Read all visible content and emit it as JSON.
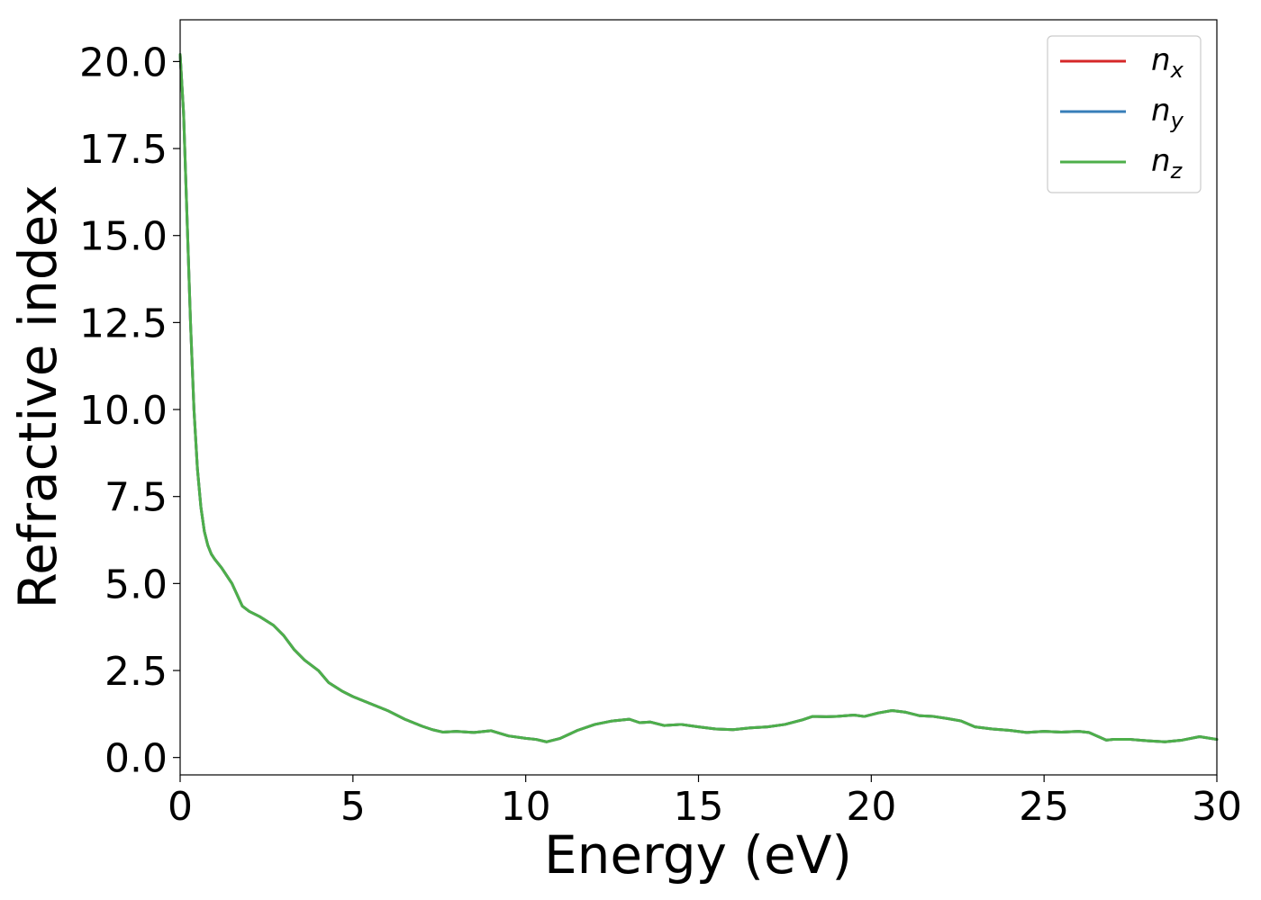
{
  "chart_data": {
    "type": "line",
    "title": "",
    "xlabel": "Energy (eV)",
    "ylabel": "Refractive index",
    "xlim": [
      0,
      30
    ],
    "ylim": [
      -0.5,
      21.2
    ],
    "xticks": [
      0,
      5,
      10,
      15,
      20,
      25,
      30
    ],
    "xtick_labels": [
      "0",
      "5",
      "10",
      "15",
      "20",
      "25",
      "30"
    ],
    "yticks": [
      0,
      2.5,
      5,
      7.5,
      10,
      12.5,
      15,
      17.5,
      20
    ],
    "ytick_labels": [
      "0.0",
      "2.5",
      "5.0",
      "7.5",
      "10.0",
      "12.5",
      "15.0",
      "17.5",
      "20.0"
    ],
    "grid": false,
    "legend_position": "top-right",
    "series": [
      {
        "name": "n",
        "subscript": "x",
        "color": "#d62728",
        "x": [
          0,
          0.1,
          0.2,
          0.3,
          0.4,
          0.5,
          0.6,
          0.7,
          0.8,
          0.9,
          1.0,
          1.2,
          1.5,
          1.8,
          2.0,
          2.3,
          2.7,
          3.0,
          3.3,
          3.6,
          4.0,
          4.3,
          4.7,
          5.0,
          5.5,
          6.0,
          6.5,
          7.0,
          7.3,
          7.6,
          8.0,
          8.5,
          9.0,
          9.5,
          10.0,
          10.3,
          10.6,
          11.0,
          11.5,
          12.0,
          12.5,
          13.0,
          13.3,
          13.6,
          14.0,
          14.5,
          15.0,
          15.5,
          16.0,
          16.5,
          17.0,
          17.5,
          18.0,
          18.3,
          18.7,
          19.0,
          19.5,
          19.8,
          20.2,
          20.6,
          21.0,
          21.4,
          21.8,
          22.2,
          22.6,
          23.0,
          23.5,
          24.0,
          24.5,
          25.0,
          25.5,
          26.0,
          26.3,
          26.8,
          27.0,
          27.5,
          28.0,
          28.5,
          29.0,
          29.5,
          30.0
        ],
        "y": [
          20.2,
          18.5,
          15.5,
          12.5,
          10.0,
          8.3,
          7.2,
          6.5,
          6.1,
          5.85,
          5.7,
          5.45,
          5.0,
          4.35,
          4.2,
          4.05,
          3.8,
          3.5,
          3.1,
          2.8,
          2.5,
          2.15,
          1.9,
          1.75,
          1.55,
          1.35,
          1.1,
          0.9,
          0.8,
          0.73,
          0.75,
          0.72,
          0.77,
          0.62,
          0.55,
          0.52,
          0.45,
          0.55,
          0.78,
          0.95,
          1.05,
          1.1,
          1.0,
          1.02,
          0.92,
          0.95,
          0.88,
          0.82,
          0.8,
          0.85,
          0.88,
          0.95,
          1.08,
          1.18,
          1.17,
          1.18,
          1.22,
          1.18,
          1.28,
          1.35,
          1.3,
          1.2,
          1.18,
          1.12,
          1.05,
          0.88,
          0.82,
          0.78,
          0.72,
          0.75,
          0.73,
          0.75,
          0.72,
          0.5,
          0.52,
          0.52,
          0.48,
          0.45,
          0.5,
          0.6,
          0.52
        ]
      },
      {
        "name": "n",
        "subscript": "y",
        "color": "#377eb8",
        "x": [
          0,
          0.1,
          0.2,
          0.3,
          0.4,
          0.5,
          0.6,
          0.7,
          0.8,
          0.9,
          1.0,
          1.2,
          1.5,
          1.8,
          2.0,
          2.3,
          2.7,
          3.0,
          3.3,
          3.6,
          4.0,
          4.3,
          4.7,
          5.0,
          5.5,
          6.0,
          6.5,
          7.0,
          7.3,
          7.6,
          8.0,
          8.5,
          9.0,
          9.5,
          10.0,
          10.3,
          10.6,
          11.0,
          11.5,
          12.0,
          12.5,
          13.0,
          13.3,
          13.6,
          14.0,
          14.5,
          15.0,
          15.5,
          16.0,
          16.5,
          17.0,
          17.5,
          18.0,
          18.3,
          18.7,
          19.0,
          19.5,
          19.8,
          20.2,
          20.6,
          21.0,
          21.4,
          21.8,
          22.2,
          22.6,
          23.0,
          23.5,
          24.0,
          24.5,
          25.0,
          25.5,
          26.0,
          26.3,
          26.8,
          27.0,
          27.5,
          28.0,
          28.5,
          29.0,
          29.5,
          30.0
        ],
        "y": [
          20.2,
          18.5,
          15.5,
          12.5,
          10.0,
          8.3,
          7.2,
          6.5,
          6.1,
          5.85,
          5.7,
          5.45,
          5.0,
          4.35,
          4.2,
          4.05,
          3.8,
          3.5,
          3.1,
          2.8,
          2.5,
          2.15,
          1.9,
          1.75,
          1.55,
          1.35,
          1.1,
          0.9,
          0.8,
          0.73,
          0.75,
          0.72,
          0.77,
          0.62,
          0.55,
          0.52,
          0.45,
          0.55,
          0.78,
          0.95,
          1.05,
          1.1,
          1.0,
          1.02,
          0.92,
          0.95,
          0.88,
          0.82,
          0.8,
          0.85,
          0.88,
          0.95,
          1.08,
          1.18,
          1.17,
          1.18,
          1.22,
          1.18,
          1.28,
          1.35,
          1.3,
          1.2,
          1.18,
          1.12,
          1.05,
          0.88,
          0.82,
          0.78,
          0.72,
          0.75,
          0.73,
          0.75,
          0.72,
          0.5,
          0.52,
          0.52,
          0.48,
          0.45,
          0.5,
          0.6,
          0.52
        ]
      },
      {
        "name": "n",
        "subscript": "z",
        "color": "#4daf4a",
        "x": [
          0,
          0.1,
          0.2,
          0.3,
          0.4,
          0.5,
          0.6,
          0.7,
          0.8,
          0.9,
          1.0,
          1.2,
          1.5,
          1.8,
          2.0,
          2.3,
          2.7,
          3.0,
          3.3,
          3.6,
          4.0,
          4.3,
          4.7,
          5.0,
          5.5,
          6.0,
          6.5,
          7.0,
          7.3,
          7.6,
          8.0,
          8.5,
          9.0,
          9.5,
          10.0,
          10.3,
          10.6,
          11.0,
          11.5,
          12.0,
          12.5,
          13.0,
          13.3,
          13.6,
          14.0,
          14.5,
          15.0,
          15.5,
          16.0,
          16.5,
          17.0,
          17.5,
          18.0,
          18.3,
          18.7,
          19.0,
          19.5,
          19.8,
          20.2,
          20.6,
          21.0,
          21.4,
          21.8,
          22.2,
          22.6,
          23.0,
          23.5,
          24.0,
          24.5,
          25.0,
          25.5,
          26.0,
          26.3,
          26.8,
          27.0,
          27.5,
          28.0,
          28.5,
          29.0,
          29.5,
          30.0
        ],
        "y": [
          20.2,
          18.5,
          15.5,
          12.5,
          10.0,
          8.3,
          7.2,
          6.5,
          6.1,
          5.85,
          5.7,
          5.45,
          5.0,
          4.35,
          4.2,
          4.05,
          3.8,
          3.5,
          3.1,
          2.8,
          2.5,
          2.15,
          1.9,
          1.75,
          1.55,
          1.35,
          1.1,
          0.9,
          0.8,
          0.73,
          0.75,
          0.72,
          0.77,
          0.62,
          0.55,
          0.52,
          0.45,
          0.55,
          0.78,
          0.95,
          1.05,
          1.1,
          1.0,
          1.02,
          0.92,
          0.95,
          0.88,
          0.82,
          0.8,
          0.85,
          0.88,
          0.95,
          1.08,
          1.18,
          1.17,
          1.18,
          1.22,
          1.18,
          1.28,
          1.35,
          1.3,
          1.2,
          1.18,
          1.12,
          1.05,
          0.88,
          0.82,
          0.78,
          0.72,
          0.75,
          0.73,
          0.75,
          0.72,
          0.5,
          0.52,
          0.52,
          0.48,
          0.45,
          0.5,
          0.6,
          0.52
        ]
      }
    ]
  }
}
